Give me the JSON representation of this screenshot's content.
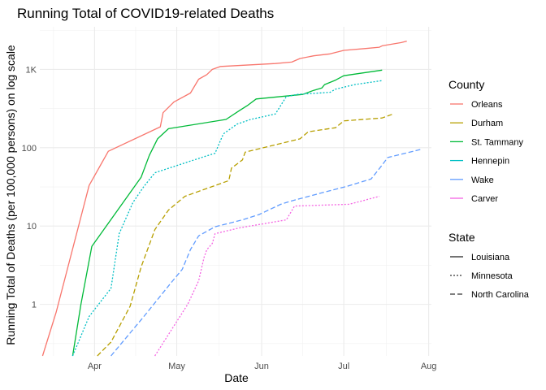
{
  "chart_data": {
    "type": "line",
    "title": "Running Total of COVID19-related Deaths",
    "xlabel": "Date",
    "ylabel": "Running Total of Deaths (per 100,000 persons) on log scale",
    "yscale": "log",
    "x_unit": "day of year 2020",
    "xlim": [
      72,
      215
    ],
    "ylim": [
      0.22,
      3500
    ],
    "x_ticks": [
      {
        "value": 92,
        "label": "Apr"
      },
      {
        "value": 122,
        "label": "May"
      },
      {
        "value": 153,
        "label": "Jun"
      },
      {
        "value": 183,
        "label": "Jul"
      },
      {
        "value": 214,
        "label": "Aug"
      }
    ],
    "y_ticks": [
      {
        "value": 1,
        "label": "1"
      },
      {
        "value": 10,
        "label": "10"
      },
      {
        "value": 100,
        "label": "100"
      },
      {
        "value": 1000,
        "label": "1K"
      }
    ],
    "grid": true,
    "legend_position": "right",
    "legend": {
      "county_title": "County",
      "state_title": "State",
      "counties": [
        {
          "name": "Orleans",
          "color": "#F8766D"
        },
        {
          "name": "Durham",
          "color": "#B79F00"
        },
        {
          "name": "St. Tammany",
          "color": "#00BA38"
        },
        {
          "name": "Hennepin",
          "color": "#00BFC4"
        },
        {
          "name": "Wake",
          "color": "#619CFF"
        },
        {
          "name": "Carver",
          "color": "#F564E3"
        }
      ],
      "states": [
        {
          "name": "Louisiana",
          "dash": "solid"
        },
        {
          "name": "Minnesota",
          "dash": "dotted"
        },
        {
          "name": "North Carolina",
          "dash": "dashed"
        }
      ]
    },
    "series": [
      {
        "name": "Orleans",
        "county": "Orleans",
        "state": "Louisiana",
        "color": "#F8766D",
        "dash": "solid",
        "points": [
          [
            73,
            0.22
          ],
          [
            78,
            0.8
          ],
          [
            90,
            33
          ],
          [
            97,
            90
          ],
          [
            116,
            185
          ],
          [
            117,
            280
          ],
          [
            121,
            385
          ],
          [
            127,
            500
          ],
          [
            130,
            750
          ],
          [
            133,
            860
          ],
          [
            135,
            1000
          ],
          [
            138,
            1090
          ],
          [
            158,
            1190
          ],
          [
            164,
            1240
          ],
          [
            167,
            1380
          ],
          [
            172,
            1490
          ],
          [
            178,
            1580
          ],
          [
            183,
            1750
          ],
          [
            191,
            1850
          ],
          [
            196,
            1920
          ],
          [
            197,
            2000
          ],
          [
            204,
            2200
          ],
          [
            206,
            2300
          ]
        ]
      },
      {
        "name": "St. Tammany",
        "county": "St. Tammany",
        "state": "Louisiana",
        "color": "#00BA38",
        "dash": "solid",
        "points": [
          [
            84,
            0.22
          ],
          [
            87,
            1
          ],
          [
            91,
            5.5
          ],
          [
            109,
            42
          ],
          [
            112,
            80
          ],
          [
            115,
            130
          ],
          [
            119,
            175
          ],
          [
            140,
            230
          ],
          [
            145,
            300
          ],
          [
            148,
            350
          ],
          [
            151,
            420
          ],
          [
            168,
            480
          ],
          [
            172,
            540
          ],
          [
            175,
            580
          ],
          [
            176,
            640
          ],
          [
            180,
            730
          ],
          [
            183,
            830
          ],
          [
            197,
            980
          ]
        ]
      },
      {
        "name": "Hennepin",
        "county": "Hennepin",
        "state": "Minnesota",
        "color": "#00BFC4",
        "dash": "dotted",
        "points": [
          [
            84,
            0.22
          ],
          [
            90,
            0.7
          ],
          [
            98,
            1.6
          ],
          [
            101,
            8
          ],
          [
            106,
            20
          ],
          [
            110,
            32
          ],
          [
            114,
            48
          ],
          [
            131,
            75
          ],
          [
            136,
            85
          ],
          [
            139,
            150
          ],
          [
            144,
            200
          ],
          [
            149,
            230
          ],
          [
            158,
            270
          ],
          [
            162,
            450
          ],
          [
            166,
            480
          ],
          [
            178,
            510
          ],
          [
            180,
            560
          ],
          [
            187,
            640
          ],
          [
            197,
            720
          ]
        ]
      },
      {
        "name": "Durham",
        "county": "Durham",
        "state": "North Carolina",
        "color": "#B79F00",
        "dash": "dashed",
        "points": [
          [
            93,
            0.22
          ],
          [
            98,
            0.33
          ],
          [
            105,
            0.95
          ],
          [
            109,
            3
          ],
          [
            114,
            9
          ],
          [
            119,
            16
          ],
          [
            125,
            24
          ],
          [
            141,
            38
          ],
          [
            142,
            55
          ],
          [
            146,
            70
          ],
          [
            147,
            88
          ],
          [
            167,
            130
          ],
          [
            170,
            160
          ],
          [
            180,
            180
          ],
          [
            183,
            220
          ],
          [
            197,
            240
          ],
          [
            201,
            270
          ]
        ]
      },
      {
        "name": "Wake",
        "county": "Wake",
        "state": "North Carolina",
        "color": "#619CFF",
        "dash": "dashed",
        "points": [
          [
            98,
            0.22
          ],
          [
            110,
            0.7
          ],
          [
            120,
            1.9
          ],
          [
            124,
            2.8
          ],
          [
            127,
            5
          ],
          [
            130,
            7.5
          ],
          [
            136,
            9.8
          ],
          [
            146,
            12
          ],
          [
            152,
            14
          ],
          [
            160,
            19
          ],
          [
            164,
            21
          ],
          [
            174,
            26
          ],
          [
            184,
            32
          ],
          [
            193,
            40
          ],
          [
            197,
            60
          ],
          [
            199,
            75
          ],
          [
            211,
            95
          ]
        ]
      },
      {
        "name": "Carver",
        "county": "Carver",
        "state": "Minnesota",
        "color": "#F564E3",
        "dash": "dotted",
        "points": [
          [
            114,
            0.22
          ],
          [
            126,
            1
          ],
          [
            130,
            2
          ],
          [
            132,
            4
          ],
          [
            133,
            5
          ],
          [
            135,
            6
          ],
          [
            136,
            8
          ],
          [
            145,
            9.5
          ],
          [
            162,
            12
          ],
          [
            165,
            18
          ],
          [
            185,
            19
          ],
          [
            196,
            24
          ]
        ]
      }
    ]
  }
}
